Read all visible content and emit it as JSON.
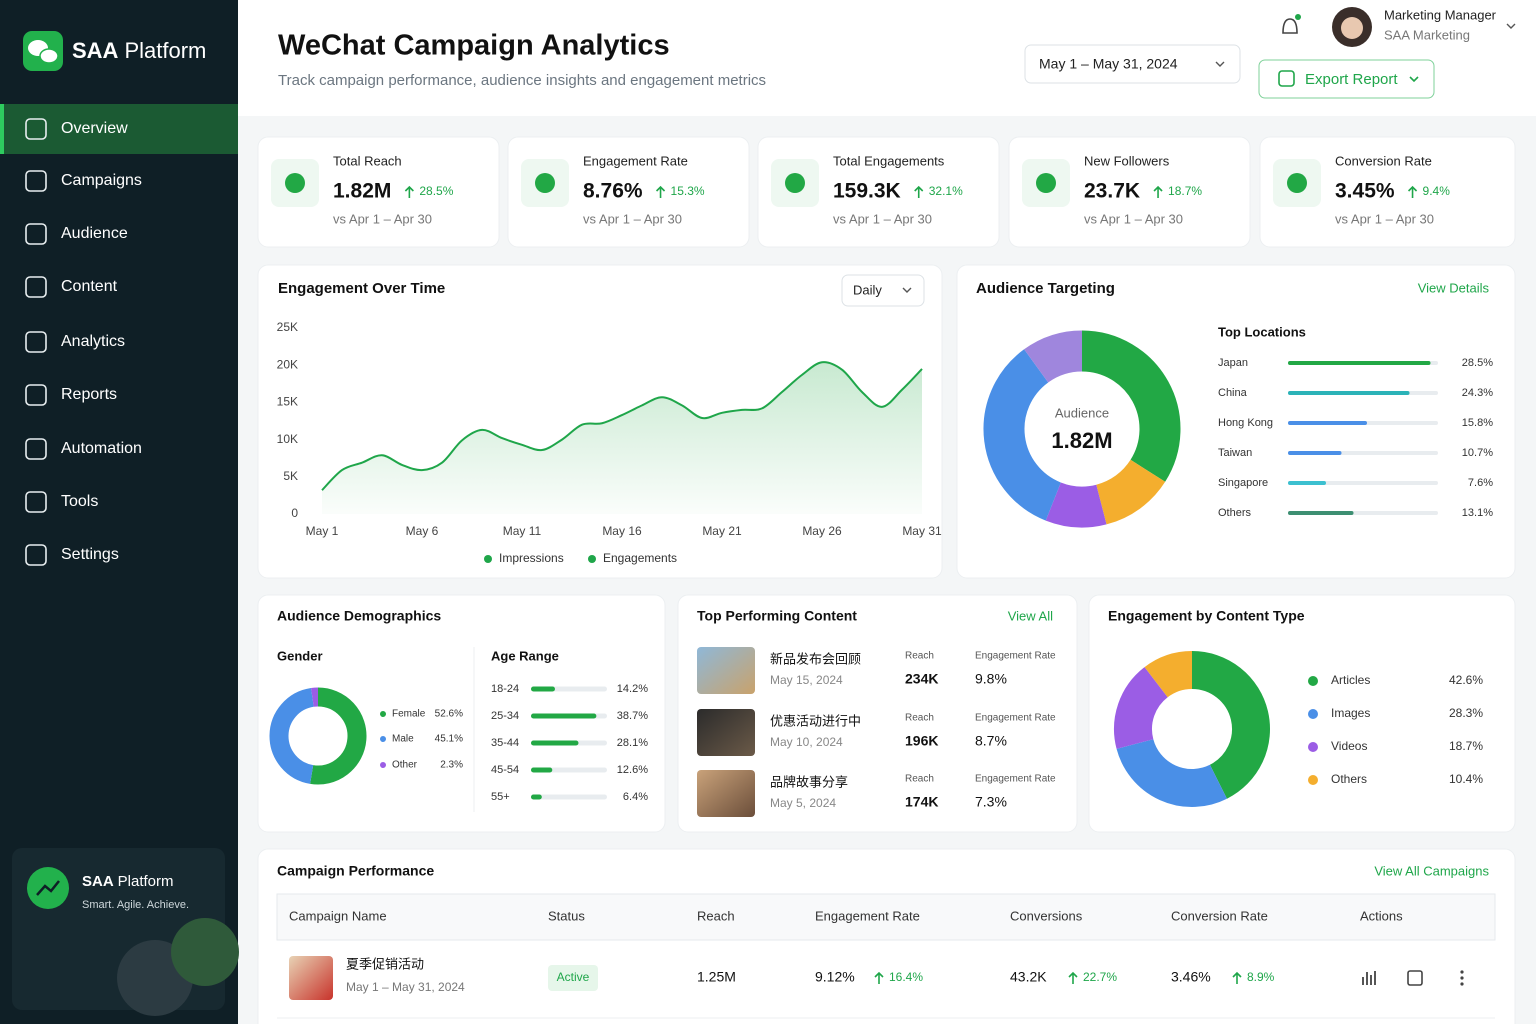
{
  "sidebar": {
    "brand": [
      "SAA",
      "Platform"
    ],
    "active": 0,
    "nav": [
      "Overview",
      "Campaigns",
      "Audience",
      "Content",
      "Analytics",
      "Reports",
      "Automation",
      "Tools",
      "Settings"
    ],
    "footer": {
      "brand": [
        "SAA",
        "Platform"
      ],
      "tagline": "Smart. Agile. Achieve."
    }
  },
  "header": {
    "title": "WeChat Campaign Analytics",
    "subtitle": "Track campaign performance, audience insights and engagement metrics",
    "date_range": "May 1 – May 31, 2024",
    "export": "Export Report",
    "user": {
      "name": "Marketing Manager",
      "org": "SAA Marketing"
    }
  },
  "kpis": [
    {
      "label": "Total Reach",
      "value": "1.82M",
      "change": "28.5%",
      "compare": "vs Apr 1 – Apr 30"
    },
    {
      "label": "Engagement Rate",
      "value": "8.76%",
      "change": "15.3%",
      "compare": "vs Apr 1 – Apr 30"
    },
    {
      "label": "Total Engagements",
      "value": "159.3K",
      "change": "32.1%",
      "compare": "vs Apr 1 – Apr 30"
    },
    {
      "label": "New Followers",
      "value": "23.7K",
      "change": "18.7%",
      "compare": "vs Apr 1 – Apr 30"
    },
    {
      "label": "Conversion Rate",
      "value": "3.45%",
      "change": "9.4%",
      "compare": "vs Apr 1 – Apr 30"
    }
  ],
  "engagement": {
    "type": "line",
    "title": "Engagement Over Time",
    "period": "Daily",
    "categories": [
      "May 1",
      null,
      null,
      null,
      null,
      "May 6",
      null,
      null,
      null,
      null,
      "May 11",
      null,
      null,
      null,
      null,
      "May 16",
      null,
      null,
      null,
      null,
      "May 21",
      null,
      null,
      null,
      null,
      "May 26",
      null,
      null,
      null,
      null,
      "May 31"
    ],
    "series": [
      {
        "name": "Impressions",
        "color": "#1fa64a"
      },
      {
        "name": "Engagements",
        "color": "#1fa64a",
        "values": [
          3200,
          5900,
          6900,
          7900,
          6600,
          5900,
          6900,
          9900,
          11300,
          10200,
          9300,
          8600,
          10000,
          12000,
          12200,
          13300,
          14600,
          15700,
          14600,
          12900,
          13600,
          14000,
          14200,
          16400,
          18700,
          20400,
          19400,
          16400,
          14400,
          16700,
          19500
        ]
      }
    ],
    "ylim": [
      0,
      25000
    ],
    "yticks": [
      0,
      {
        "value": 5000,
        "label": "5K"
      },
      {
        "value": 10000,
        "label": "10K"
      },
      {
        "value": 15000,
        "label": "15K"
      },
      {
        "value": 20000,
        "label": "20K"
      },
      {
        "value": 25000,
        "label": "25K"
      }
    ]
  },
  "audience": {
    "type": "donut",
    "title": "Audience Targeting",
    "link": "View Details",
    "center_label": "Audience",
    "center_value": "1.82M",
    "values": [
      34,
      12,
      10,
      34,
      10
    ],
    "colors": [
      "#22a845",
      "#f4ae2e",
      "#9b5de5",
      "#4a8fe7",
      "#9f86dd"
    ],
    "locations": {
      "type": "bar",
      "title": "Top Locations",
      "categories": [
        "Japan",
        "China",
        "Hong Kong",
        "Taiwan",
        "Singapore",
        "Others"
      ],
      "values": [
        28.5,
        24.3,
        15.8,
        10.7,
        7.6,
        13.1
      ],
      "value_labels": [
        "28.5%",
        "24.3%",
        "15.8%",
        "10.7%",
        "7.6%",
        "13.1%"
      ],
      "colors": [
        "#22a845",
        "#2bb3b8",
        "#4a8fe7",
        "#4a8fe7",
        "#3cc0d0",
        "#3d8f72"
      ],
      "xlim": [
        0,
        30
      ]
    }
  },
  "demographics": {
    "title": "Audience Demographics",
    "gender": {
      "type": "donut",
      "title": "Gender",
      "categories": [
        "Female",
        "Male",
        "Other"
      ],
      "values": [
        52.6,
        45.1,
        2.3
      ],
      "value_labels": [
        "52.6%",
        "45.1%",
        "2.3%"
      ],
      "colors": [
        "#22a845",
        "#4a8fe7",
        "#9b5de5"
      ]
    },
    "age": {
      "type": "bar",
      "title": "Age Range",
      "categories": [
        "18-24",
        "25-34",
        "35-44",
        "45-54",
        "55+"
      ],
      "values": [
        14.2,
        38.7,
        28.1,
        12.6,
        6.4
      ],
      "value_labels": [
        "14.2%",
        "38.7%",
        "28.1%",
        "12.6%",
        "6.4%"
      ],
      "color": "#22a845",
      "xlim": [
        0,
        45
      ]
    }
  },
  "top_content": {
    "title": "Top Performing Content",
    "link": "View All",
    "reach_label": "Reach",
    "rate_label": "Engagement Rate",
    "items": [
      {
        "title": "新品发布会回顾",
        "date": "May 15, 2024",
        "reach": "234K",
        "rate": "9.8%"
      },
      {
        "title": "优惠活动进行中",
        "date": "May 10, 2024",
        "reach": "196K",
        "rate": "8.7%"
      },
      {
        "title": "品牌故事分享",
        "date": "May 5, 2024",
        "reach": "174K",
        "rate": "7.3%"
      }
    ]
  },
  "content_type": {
    "type": "donut",
    "title": "Engagement by Content Type",
    "categories": [
      "Articles",
      "Images",
      "Videos",
      "Others"
    ],
    "values": [
      42.6,
      28.3,
      18.7,
      10.4
    ],
    "value_labels": [
      "42.6%",
      "28.3%",
      "18.7%",
      "10.4%"
    ],
    "colors": [
      "#22a845",
      "#4a8fe7",
      "#9b5de5",
      "#f4ae2e"
    ]
  },
  "campaigns": {
    "title": "Campaign Performance",
    "link": "View All Campaigns",
    "columns": [
      "Campaign Name",
      "Status",
      "Reach",
      "Engagement Rate",
      "Conversions",
      "Conversion Rate",
      "Actions"
    ],
    "rows": [
      {
        "name": "夏季促销活动",
        "date": "May 1 – May 31, 2024",
        "status": "Active",
        "reach": "1.25M",
        "engagement_rate": "9.12%",
        "engagement_change": "16.4%",
        "conversions": "43.2K",
        "conversions_change": "22.7%",
        "conversion_rate": "3.46%",
        "conversion_rate_change": "8.9%"
      }
    ]
  }
}
